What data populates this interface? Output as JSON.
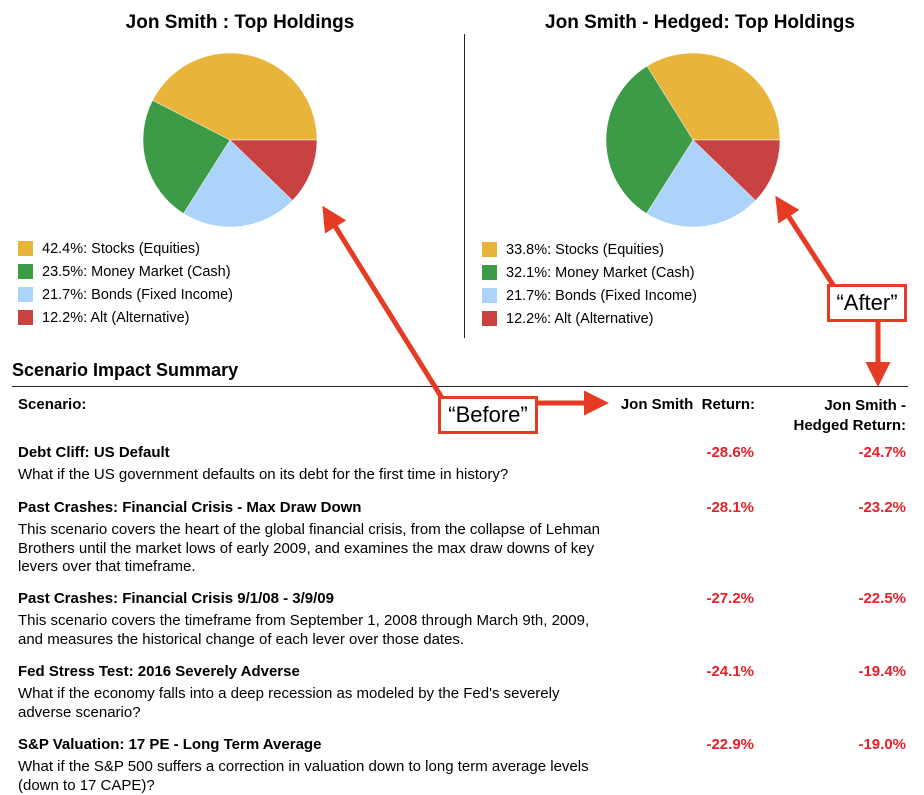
{
  "colors": {
    "stocks": "#e8b43b",
    "money_market": "#3d9a46",
    "bonds": "#acd3fa",
    "alt": "#c94242",
    "negative": "#e8202a",
    "annotation": "#e53a24"
  },
  "chart_data": [
    {
      "type": "pie",
      "title": "Jon Smith : Top Holdings",
      "categories": [
        "Stocks (Equities)",
        "Money Market (Cash)",
        "Bonds (Fixed Income)",
        "Alt (Alternative)"
      ],
      "values": [
        42.4,
        23.5,
        21.7,
        12.2
      ],
      "labels": [
        "42.4%: Stocks (Equities)",
        "23.5%: Money Market (Cash)",
        "21.7%: Bonds (Fixed Income)",
        "12.2%: Alt (Alternative)"
      ],
      "colors": [
        "#e8b43b",
        "#3d9a46",
        "#acd3fa",
        "#c94242"
      ],
      "legend": "bottom-left"
    },
    {
      "type": "pie",
      "title": "Jon Smith - Hedged: Top Holdings",
      "categories": [
        "Stocks (Equities)",
        "Money Market (Cash)",
        "Bonds (Fixed Income)",
        "Alt (Alternative)"
      ],
      "values": [
        33.8,
        32.1,
        21.7,
        12.2
      ],
      "labels": [
        "33.8%: Stocks (Equities)",
        "32.1%: Money Market (Cash)",
        "21.7%: Bonds (Fixed Income)",
        "12.2%: Alt (Alternative)"
      ],
      "colors": [
        "#e8b43b",
        "#3d9a46",
        "#acd3fa",
        "#c94242"
      ],
      "legend": "bottom-left"
    }
  ],
  "summary": {
    "title": "Scenario Impact Summary",
    "col_scenario": "Scenario:",
    "col_js": "Jon Smith  Return:",
    "col_hedged_1": "Jon Smith -",
    "col_hedged_2": "Hedged Return:",
    "rows": [
      {
        "title": "Debt Cliff: US Default",
        "desc": "What if the US government defaults on its debt for the first time in history?",
        "js": "-28.6%",
        "hedged": "-24.7%"
      },
      {
        "title": "Past Crashes: Financial Crisis - Max Draw Down",
        "desc": "This scenario covers the heart of the global financial crisis, from the collapse of Lehman Brothers until the market lows of early 2009, and examines the max draw downs of key levers over that timeframe.",
        "js": "-28.1%",
        "hedged": "-23.2%"
      },
      {
        "title": "Past Crashes: Financial Crisis 9/1/08 - 3/9/09",
        "desc": "This scenario covers the timeframe from September 1, 2008 through March 9th, 2009, and measures the historical change of each lever over those dates.",
        "js": "-27.2%",
        "hedged": "-22.5%"
      },
      {
        "title": "Fed Stress Test: 2016 Severely Adverse",
        "desc": "What if the economy falls into a deep recession as modeled by the Fed's severely adverse scenario?",
        "js": "-24.1%",
        "hedged": "-19.4%"
      },
      {
        "title": "S&P Valuation: 17 PE - Long Term Average",
        "desc": "What if the S&P 500 suffers a correction in valuation down to long term average levels (down to 17 CAPE)?",
        "js": "-22.9%",
        "hedged": "-19.0%"
      }
    ]
  },
  "annotations": {
    "before": "“Before”",
    "after": "“After”"
  }
}
